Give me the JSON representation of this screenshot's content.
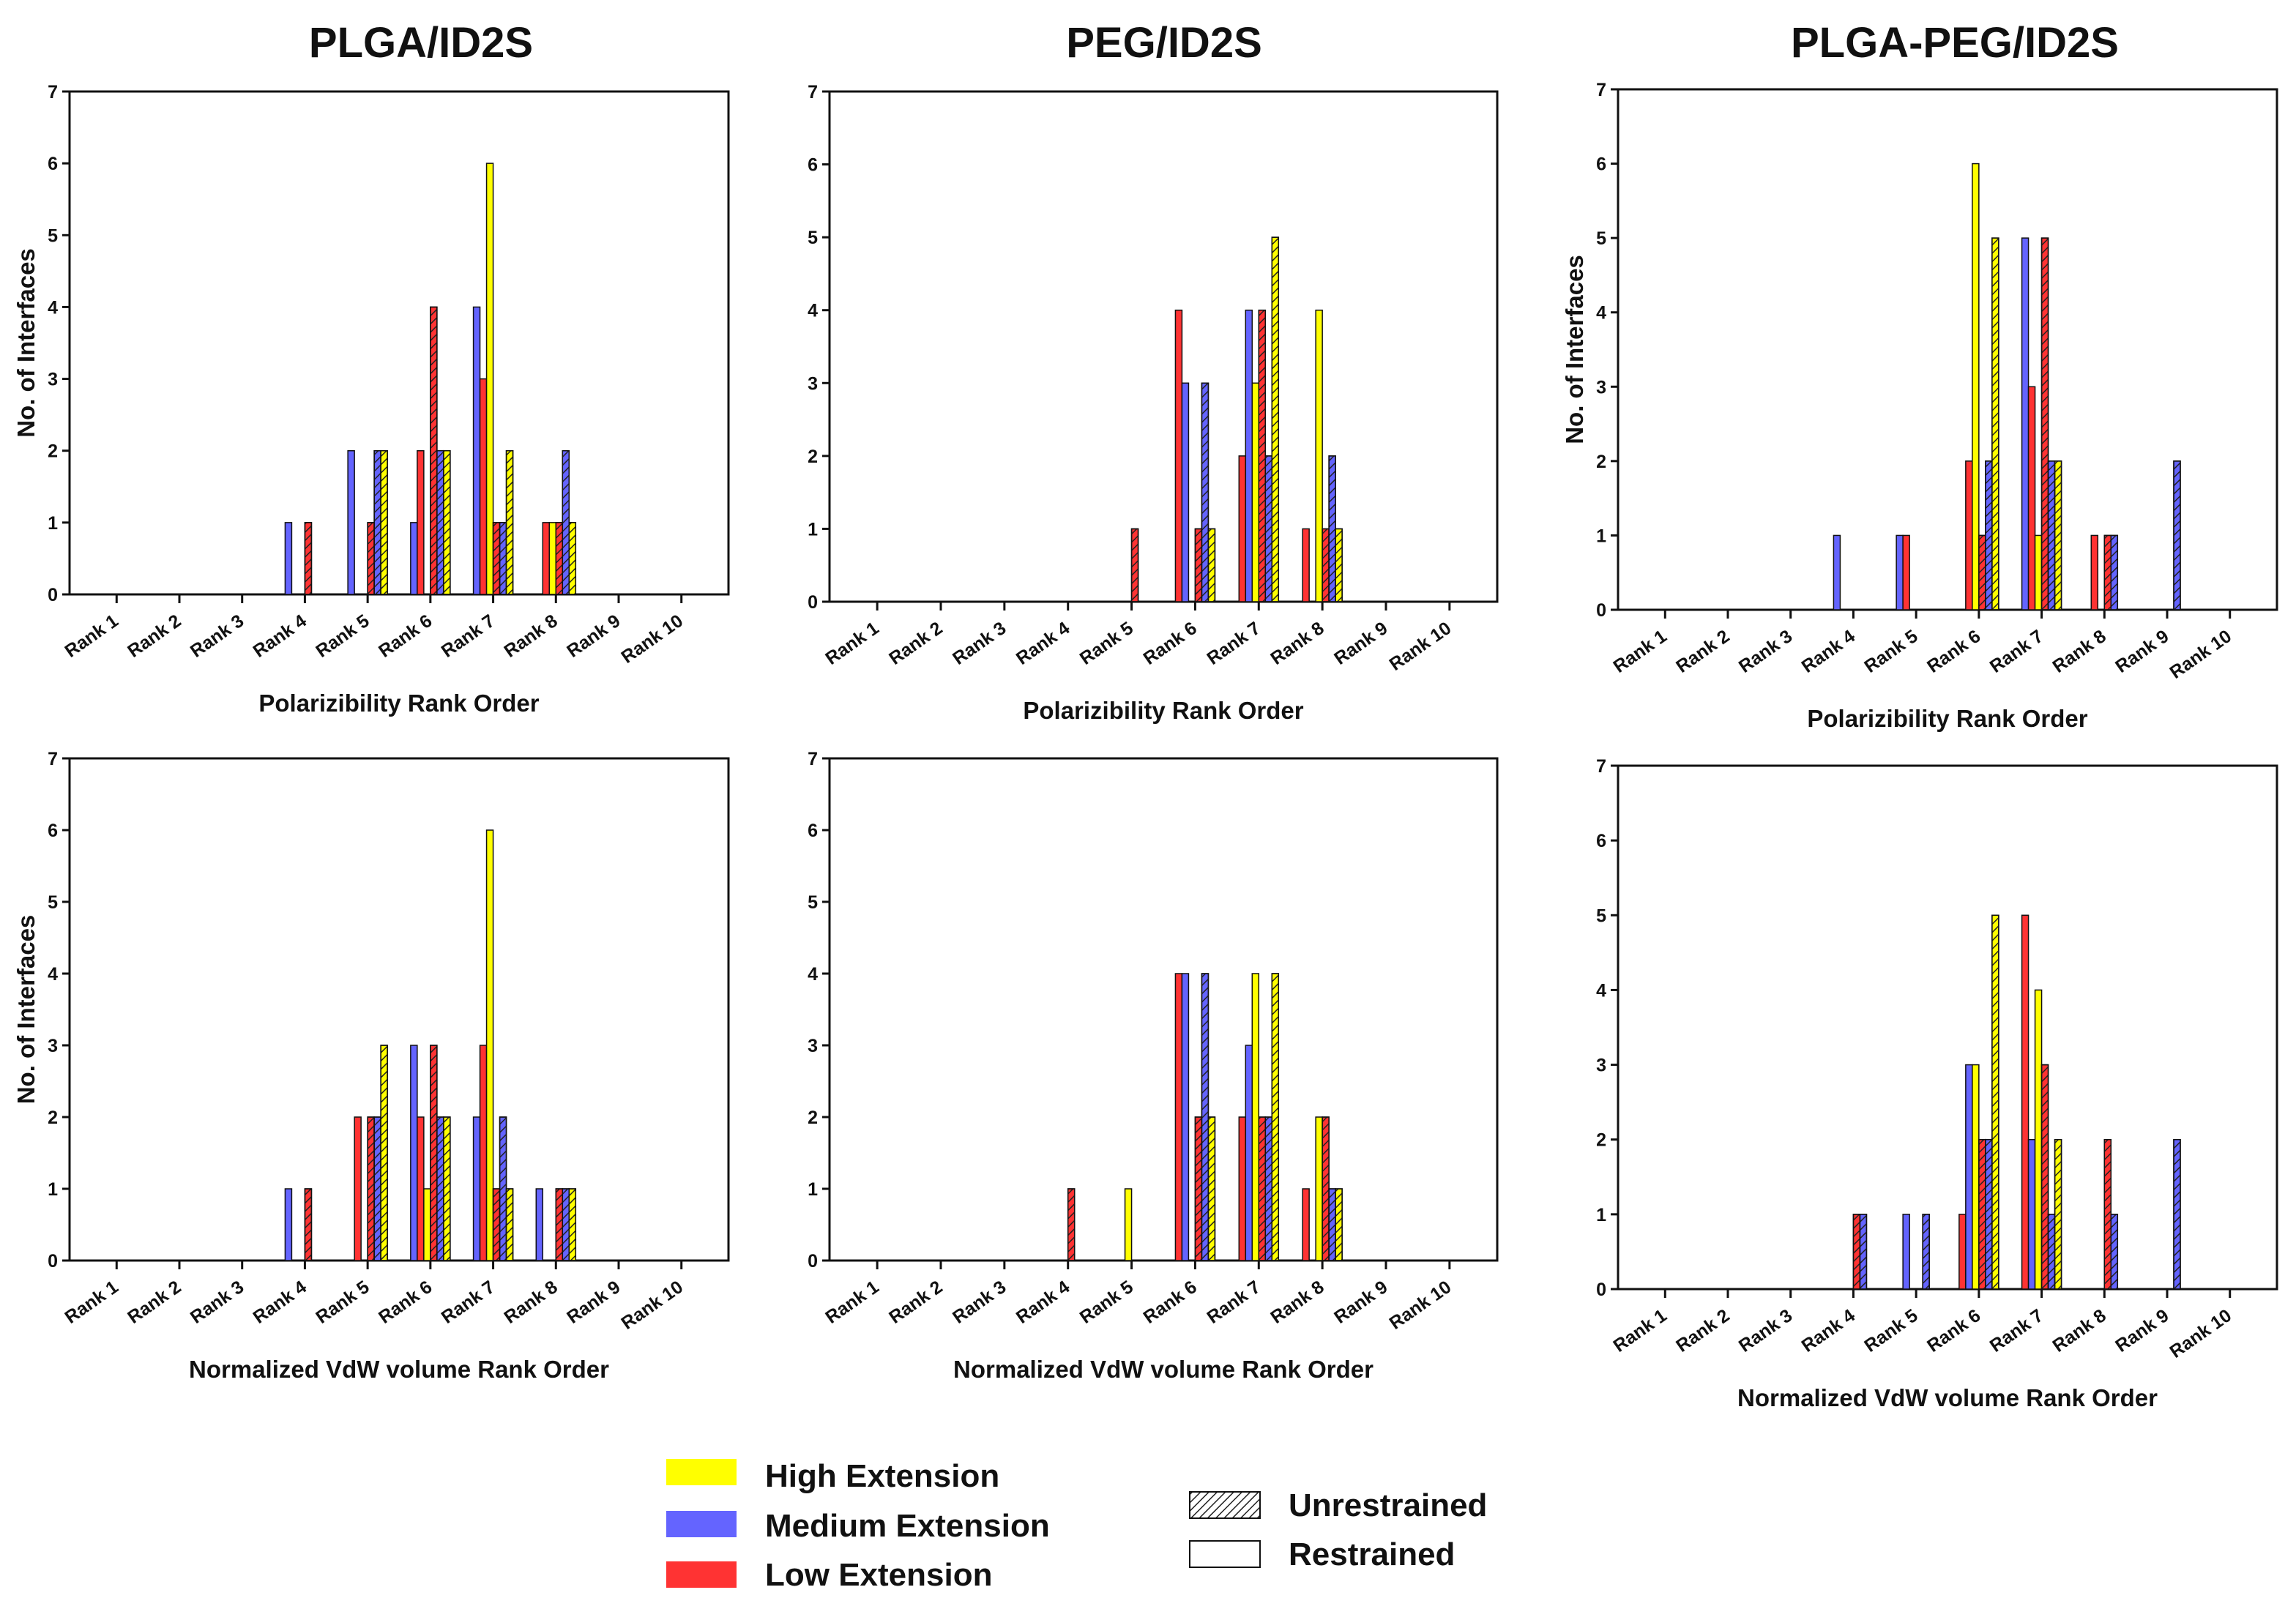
{
  "column_titles": [
    "PLGA/ID2S",
    "PEG/ID2S",
    "PLGA-PEG/ID2S"
  ],
  "legend": {
    "extensions": [
      {
        "label": "High Extension",
        "color": "#ffff00"
      },
      {
        "label": "Medium Extension",
        "color": "#6464ff"
      },
      {
        "label": "Low Extension",
        "color": "#ff3333"
      }
    ],
    "patterns": [
      {
        "label": "Unrestrained",
        "style": "hatched"
      },
      {
        "label": "Restrained",
        "style": "solid"
      }
    ]
  },
  "colors": {
    "High": "#ffff00",
    "Medium": "#6464ff",
    "Low": "#ff3333"
  },
  "chart_data": [
    {
      "type": "bar",
      "title": "PLGA/ID2S",
      "xlabel": "Polarizibility Rank Order",
      "ylabel": "No. of Interfaces",
      "categories": [
        "Rank 1",
        "Rank 2",
        "Rank 3",
        "Rank 4",
        "Rank 5",
        "Rank 6",
        "Rank 7",
        "Rank 8",
        "Rank 9",
        "Rank 10"
      ],
      "ylim": [
        0,
        7
      ],
      "yticks": [
        "0",
        "1",
        "2",
        "3",
        "4",
        "5",
        "6",
        "7"
      ],
      "series_order": [
        "Medium-Restrained",
        "Low-Restrained",
        "High-Restrained",
        "Low-Unrestrained",
        "Medium-Unrestrained",
        "High-Unrestrained"
      ],
      "series": [
        {
          "name": "Medium-Restrained",
          "values": [
            0,
            0,
            0,
            1,
            2,
            1,
            4,
            0,
            0,
            0
          ]
        },
        {
          "name": "Low-Restrained",
          "values": [
            0,
            0,
            0,
            0,
            0,
            2,
            3,
            1,
            0,
            0
          ]
        },
        {
          "name": "High-Restrained",
          "values": [
            0,
            0,
            0,
            0,
            0,
            0,
            6,
            1,
            0,
            0
          ]
        },
        {
          "name": "Low-Unrestrained",
          "values": [
            0,
            0,
            0,
            1,
            1,
            4,
            1,
            1,
            0,
            0
          ]
        },
        {
          "name": "Medium-Unrestrained",
          "values": [
            0,
            0,
            0,
            0,
            2,
            2,
            1,
            2,
            0,
            0
          ]
        },
        {
          "name": "High-Unrestrained",
          "values": [
            0,
            0,
            0,
            0,
            2,
            2,
            2,
            1,
            0,
            0
          ]
        }
      ]
    },
    {
      "type": "bar",
      "title": "PEG/ID2S",
      "xlabel": "Polarizibility Rank Order",
      "ylabel": "",
      "categories": [
        "Rank 1",
        "Rank 2",
        "Rank 3",
        "Rank 4",
        "Rank 5",
        "Rank 6",
        "Rank 7",
        "Rank 8",
        "Rank 9",
        "Rank 10"
      ],
      "ylim": [
        0,
        7
      ],
      "yticks": [
        "0",
        "1",
        "2",
        "3",
        "4",
        "5",
        "6",
        "7"
      ],
      "series_order": [
        "Low-Restrained",
        "Medium-Restrained",
        "High-Restrained",
        "Low-Unrestrained",
        "Medium-Unrestrained",
        "High-Unrestrained"
      ],
      "series": [
        {
          "name": "Low-Restrained",
          "values": [
            0,
            0,
            0,
            0,
            0,
            4,
            2,
            1,
            0,
            0
          ]
        },
        {
          "name": "Medium-Restrained",
          "values": [
            0,
            0,
            0,
            0,
            0,
            3,
            4,
            0,
            0,
            0
          ]
        },
        {
          "name": "High-Restrained",
          "values": [
            0,
            0,
            0,
            0,
            0,
            0,
            3,
            4,
            0,
            0
          ]
        },
        {
          "name": "Low-Unrestrained",
          "values": [
            0,
            0,
            0,
            0,
            1,
            1,
            4,
            1,
            0,
            0
          ]
        },
        {
          "name": "Medium-Unrestrained",
          "values": [
            0,
            0,
            0,
            0,
            0,
            3,
            2,
            2,
            0,
            0
          ]
        },
        {
          "name": "High-Unrestrained",
          "values": [
            0,
            0,
            0,
            0,
            0,
            1,
            5,
            1,
            0,
            0
          ]
        }
      ]
    },
    {
      "type": "bar",
      "title": "PLGA-PEG/ID2S",
      "xlabel": "Polarizibility Rank Order",
      "ylabel": "No. of Interfaces",
      "categories": [
        "Rank 1",
        "Rank 2",
        "Rank 3",
        "Rank 4",
        "Rank 5",
        "Rank 6",
        "Rank 7",
        "Rank 8",
        "Rank 9",
        "Rank 10"
      ],
      "ylim": [
        0,
        7
      ],
      "yticks": [
        "0",
        "1",
        "2",
        "3",
        "4",
        "5",
        "6",
        "7"
      ],
      "series_order": [
        "Medium-Restrained",
        "Low-Restrained",
        "High-Restrained",
        "Low-Unrestrained",
        "Medium-Unrestrained",
        "High-Unrestrained"
      ],
      "series": [
        {
          "name": "Medium-Restrained",
          "values": [
            0,
            0,
            0,
            1,
            1,
            0,
            5,
            0,
            0,
            0
          ]
        },
        {
          "name": "Low-Restrained",
          "values": [
            0,
            0,
            0,
            0,
            1,
            2,
            3,
            1,
            0,
            0
          ]
        },
        {
          "name": "High-Restrained",
          "values": [
            0,
            0,
            0,
            0,
            0,
            6,
            1,
            0,
            0,
            0
          ]
        },
        {
          "name": "Low-Unrestrained",
          "values": [
            0,
            0,
            0,
            0,
            0,
            1,
            5,
            1,
            0,
            0
          ]
        },
        {
          "name": "Medium-Unrestrained",
          "values": [
            0,
            0,
            0,
            0,
            0,
            2,
            2,
            1,
            2,
            0
          ]
        },
        {
          "name": "High-Unrestrained",
          "values": [
            0,
            0,
            0,
            0,
            0,
            5,
            2,
            0,
            0,
            0
          ]
        }
      ]
    },
    {
      "type": "bar",
      "title": "PLGA/ID2S",
      "xlabel": "Normalized VdW volume Rank Order",
      "ylabel": "No. of Interfaces",
      "categories": [
        "Rank 1",
        "Rank 2",
        "Rank 3",
        "Rank 4",
        "Rank 5",
        "Rank 6",
        "Rank 7",
        "Rank 8",
        "Rank 9",
        "Rank 10"
      ],
      "ylim": [
        0,
        7
      ],
      "yticks": [
        "0",
        "1",
        "2",
        "3",
        "4",
        "5",
        "6",
        "7"
      ],
      "series_order": [
        "Medium-Restrained",
        "Low-Restrained",
        "High-Restrained",
        "Low-Unrestrained",
        "Medium-Unrestrained",
        "High-Unrestrained"
      ],
      "series": [
        {
          "name": "Medium-Restrained",
          "values": [
            0,
            0,
            0,
            1,
            0,
            3,
            2,
            1,
            0,
            0
          ]
        },
        {
          "name": "Low-Restrained",
          "values": [
            0,
            0,
            0,
            0,
            2,
            2,
            3,
            0,
            0,
            0
          ]
        },
        {
          "name": "High-Restrained",
          "values": [
            0,
            0,
            0,
            0,
            0,
            1,
            6,
            0,
            0,
            0
          ]
        },
        {
          "name": "Low-Unrestrained",
          "values": [
            0,
            0,
            0,
            1,
            2,
            3,
            1,
            1,
            0,
            0
          ]
        },
        {
          "name": "Medium-Unrestrained",
          "values": [
            0,
            0,
            0,
            0,
            2,
            2,
            2,
            1,
            0,
            0
          ]
        },
        {
          "name": "High-Unrestrained",
          "values": [
            0,
            0,
            0,
            0,
            3,
            2,
            1,
            1,
            0,
            0
          ]
        }
      ]
    },
    {
      "type": "bar",
      "title": "PEG/ID2S",
      "xlabel": "Normalized VdW volume Rank Order",
      "ylabel": "",
      "categories": [
        "Rank 1",
        "Rank 2",
        "Rank 3",
        "Rank 4",
        "Rank 5",
        "Rank 6",
        "Rank 7",
        "Rank 8",
        "Rank 9",
        "Rank 10"
      ],
      "ylim": [
        0,
        7
      ],
      "yticks": [
        "0",
        "1",
        "2",
        "3",
        "4",
        "5",
        "6",
        "7"
      ],
      "series_order": [
        "Low-Restrained",
        "Medium-Restrained",
        "High-Restrained",
        "Low-Unrestrained",
        "Medium-Unrestrained",
        "High-Unrestrained"
      ],
      "series": [
        {
          "name": "Low-Restrained",
          "values": [
            0,
            0,
            0,
            0,
            0,
            4,
            2,
            1,
            0,
            0
          ]
        },
        {
          "name": "Medium-Restrained",
          "values": [
            0,
            0,
            0,
            0,
            0,
            4,
            3,
            0,
            0,
            0
          ]
        },
        {
          "name": "High-Restrained",
          "values": [
            0,
            0,
            0,
            0,
            1,
            0,
            4,
            2,
            0,
            0
          ]
        },
        {
          "name": "Low-Unrestrained",
          "values": [
            0,
            0,
            0,
            1,
            0,
            2,
            2,
            2,
            0,
            0
          ]
        },
        {
          "name": "Medium-Unrestrained",
          "values": [
            0,
            0,
            0,
            0,
            0,
            4,
            2,
            1,
            0,
            0
          ]
        },
        {
          "name": "High-Unrestrained",
          "values": [
            0,
            0,
            0,
            0,
            0,
            2,
            4,
            1,
            0,
            0
          ]
        }
      ]
    },
    {
      "type": "bar",
      "title": "PLGA-PEG/ID2S",
      "xlabel": "Normalized VdW volume Rank Order",
      "ylabel": "",
      "categories": [
        "Rank 1",
        "Rank 2",
        "Rank 3",
        "Rank 4",
        "Rank 5",
        "Rank 6",
        "Rank 7",
        "Rank 8",
        "Rank 9",
        "Rank 10"
      ],
      "ylim": [
        0,
        7
      ],
      "yticks": [
        "0",
        "1",
        "2",
        "3",
        "4",
        "5",
        "6",
        "7"
      ],
      "series_order": [
        "Low-Restrained",
        "Medium-Restrained",
        "High-Restrained",
        "Low-Unrestrained",
        "Medium-Unrestrained",
        "High-Unrestrained"
      ],
      "series": [
        {
          "name": "Low-Restrained",
          "values": [
            0,
            0,
            0,
            0,
            0,
            1,
            5,
            0,
            0,
            0
          ]
        },
        {
          "name": "Medium-Restrained",
          "values": [
            0,
            0,
            0,
            0,
            1,
            3,
            2,
            0,
            0,
            0
          ]
        },
        {
          "name": "High-Restrained",
          "values": [
            0,
            0,
            0,
            0,
            0,
            3,
            4,
            0,
            0,
            0
          ]
        },
        {
          "name": "Low-Unrestrained",
          "values": [
            0,
            0,
            0,
            1,
            0,
            2,
            3,
            2,
            0,
            0
          ]
        },
        {
          "name": "Medium-Unrestrained",
          "values": [
            0,
            0,
            0,
            1,
            1,
            2,
            1,
            1,
            2,
            0
          ]
        },
        {
          "name": "High-Unrestrained",
          "values": [
            0,
            0,
            0,
            0,
            0,
            5,
            2,
            0,
            0,
            0
          ]
        }
      ]
    }
  ]
}
